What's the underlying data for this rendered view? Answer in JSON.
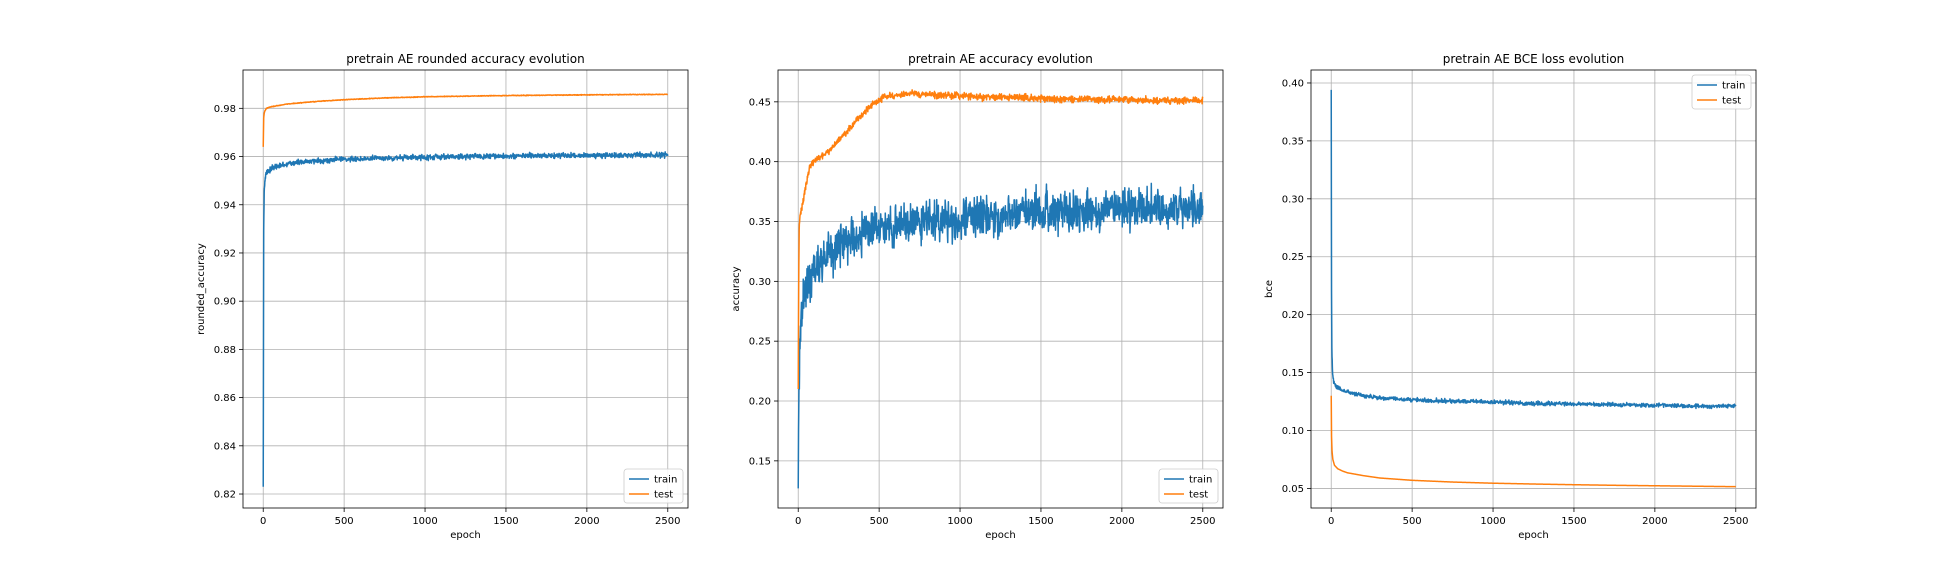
{
  "colors": {
    "train": "#1f77b4",
    "test": "#ff7f0e",
    "grid": "#b0b0b0"
  },
  "chart_data": [
    {
      "type": "line",
      "title": "pretrain AE rounded accuracy evolution",
      "xlabel": "epoch",
      "ylabel": "rounded_accuracy",
      "xlim": [
        -125,
        2625
      ],
      "ylim": [
        0.8142,
        0.9959
      ],
      "xticks": [
        0,
        500,
        1000,
        1500,
        2000,
        2500
      ],
      "yticks": [
        0.82,
        0.84,
        0.86,
        0.88,
        0.9,
        0.92,
        0.94,
        0.96,
        0.98
      ],
      "ytick_labels": [
        "0.82",
        "0.84",
        "0.86",
        "0.88",
        "0.90",
        "0.92",
        "0.94",
        "0.96",
        "0.98"
      ],
      "grid": true,
      "legend_position": "lower-right",
      "series": [
        {
          "name": "train",
          "color": "#1f77b4",
          "noise": 0.0008,
          "x": [
            0,
            3,
            6,
            10,
            15,
            20,
            30,
            50,
            75,
            100,
            150,
            200,
            300,
            400,
            500,
            750,
            1000,
            1250,
            1500,
            1750,
            2000,
            2250,
            2500
          ],
          "y": [
            0.823,
            0.93,
            0.945,
            0.95,
            0.952,
            0.953,
            0.954,
            0.955,
            0.9557,
            0.956,
            0.957,
            0.9575,
            0.958,
            0.9585,
            0.959,
            0.9593,
            0.9597,
            0.96,
            0.9602,
            0.9603,
            0.9605,
            0.9605,
            0.9607
          ]
        },
        {
          "name": "test",
          "color": "#ff7f0e",
          "noise": 0.0001,
          "x": [
            0,
            3,
            6,
            10,
            20,
            40,
            80,
            150,
            300,
            500,
            750,
            1000,
            1500,
            2000,
            2500
          ],
          "y": [
            0.964,
            0.976,
            0.978,
            0.979,
            0.98,
            0.9805,
            0.981,
            0.9818,
            0.9827,
            0.9836,
            0.9843,
            0.9848,
            0.9853,
            0.9856,
            0.9858
          ]
        }
      ]
    },
    {
      "type": "line",
      "title": "pretrain AE accuracy evolution",
      "xlabel": "epoch",
      "ylabel": "accuracy",
      "xlim": [
        -125,
        2625
      ],
      "ylim": [
        0.1106,
        0.4766
      ],
      "xticks": [
        0,
        500,
        1000,
        1500,
        2000,
        2500
      ],
      "yticks": [
        0.15,
        0.2,
        0.25,
        0.3,
        0.35,
        0.4,
        0.45
      ],
      "ytick_labels": [
        "0.15",
        "0.20",
        "0.25",
        "0.30",
        "0.35",
        "0.40",
        "0.45"
      ],
      "grid": true,
      "legend_position": "lower-right",
      "series": [
        {
          "name": "train",
          "color": "#1f77b4",
          "noise": 0.012,
          "x": [
            0,
            3,
            5,
            10,
            20,
            30,
            50,
            100,
            200,
            300,
            500,
            750,
            1000,
            1250,
            1500,
            1750,
            2000,
            2250,
            2500
          ],
          "y": [
            0.127,
            0.2,
            0.22,
            0.25,
            0.27,
            0.285,
            0.295,
            0.31,
            0.325,
            0.335,
            0.345,
            0.35,
            0.352,
            0.355,
            0.358,
            0.358,
            0.36,
            0.36,
            0.361
          ]
        },
        {
          "name": "test",
          "color": "#ff7f0e",
          "noise": 0.002,
          "x": [
            0,
            3,
            6,
            10,
            20,
            40,
            70,
            100,
            150,
            200,
            250,
            300,
            350,
            400,
            450,
            500,
            550,
            600,
            700,
            800,
            1000,
            1200,
            1500,
            1800,
            2000,
            2200,
            2500
          ],
          "y": [
            0.21,
            0.3,
            0.345,
            0.355,
            0.36,
            0.375,
            0.395,
            0.4,
            0.405,
            0.41,
            0.418,
            0.425,
            0.433,
            0.44,
            0.447,
            0.452,
            0.455,
            0.455,
            0.457,
            0.456,
            0.455,
            0.454,
            0.453,
            0.452,
            0.452,
            0.451,
            0.451
          ]
        }
      ]
    },
    {
      "type": "line",
      "title": "pretrain AE BCE loss evolution",
      "xlabel": "epoch",
      "ylabel": "bce",
      "xlim": [
        -125,
        2625
      ],
      "ylim": [
        0.0331,
        0.4112
      ],
      "xticks": [
        0,
        500,
        1000,
        1500,
        2000,
        2500
      ],
      "yticks": [
        0.05,
        0.1,
        0.15,
        0.2,
        0.25,
        0.3,
        0.35,
        0.4
      ],
      "ytick_labels": [
        "0.05",
        "0.10",
        "0.15",
        "0.20",
        "0.25",
        "0.30",
        "0.35",
        "0.40"
      ],
      "grid": true,
      "legend_position": "upper-right",
      "series": [
        {
          "name": "train",
          "color": "#1f77b4",
          "noise": 0.0012,
          "x": [
            0,
            1,
            2,
            4,
            8,
            15,
            30,
            60,
            100,
            200,
            300,
            500,
            750,
            1000,
            1250,
            1500,
            1750,
            2000,
            2250,
            2500
          ],
          "y": [
            0.394,
            0.3,
            0.22,
            0.17,
            0.15,
            0.142,
            0.138,
            0.135,
            0.133,
            0.13,
            0.128,
            0.1265,
            0.1255,
            0.1245,
            0.1235,
            0.1228,
            0.1222,
            0.1218,
            0.1212,
            0.121
          ]
        },
        {
          "name": "test",
          "color": "#ff7f0e",
          "noise": 0,
          "x": [
            0,
            2,
            5,
            10,
            20,
            40,
            70,
            100,
            200,
            300,
            500,
            750,
            1000,
            1250,
            1500,
            1750,
            2000,
            2250,
            2500
          ],
          "y": [
            0.13,
            0.095,
            0.082,
            0.075,
            0.07,
            0.067,
            0.065,
            0.0635,
            0.061,
            0.059,
            0.057,
            0.0555,
            0.0545,
            0.0538,
            0.0532,
            0.0527,
            0.0523,
            0.0519,
            0.0515
          ]
        }
      ]
    }
  ]
}
